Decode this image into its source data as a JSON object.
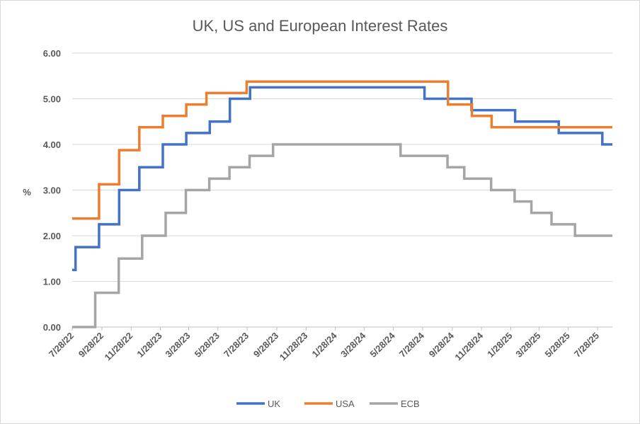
{
  "chart_data": {
    "type": "line",
    "title": "UK, US and European Interest Rates",
    "ylabel": "%",
    "xlabel": "",
    "ylim": [
      0,
      6
    ],
    "y_ticks": [
      "0.00",
      "1.00",
      "2.00",
      "3.00",
      "4.00",
      "5.00",
      "6.00"
    ],
    "xlim": [
      "2022-07-28",
      "2025-08-28"
    ],
    "x_ticks": [
      {
        "date": "2022-07-28",
        "label": "7/28/22"
      },
      {
        "date": "2022-09-28",
        "label": "9/28/22"
      },
      {
        "date": "2022-11-28",
        "label": "11/28/22"
      },
      {
        "date": "2023-01-28",
        "label": "1/28/23"
      },
      {
        "date": "2023-03-28",
        "label": "3/28/23"
      },
      {
        "date": "2023-05-28",
        "label": "5/28/23"
      },
      {
        "date": "2023-07-28",
        "label": "7/28/23"
      },
      {
        "date": "2023-09-28",
        "label": "9/28/23"
      },
      {
        "date": "2023-11-28",
        "label": "11/28/23"
      },
      {
        "date": "2024-01-28",
        "label": "1/28/24"
      },
      {
        "date": "2024-03-28",
        "label": "3/28/24"
      },
      {
        "date": "2024-05-28",
        "label": "5/28/24"
      },
      {
        "date": "2024-07-28",
        "label": "7/28/24"
      },
      {
        "date": "2024-09-28",
        "label": "9/28/24"
      },
      {
        "date": "2024-11-28",
        "label": "11/28/24"
      },
      {
        "date": "2025-01-28",
        "label": "1/28/25"
      },
      {
        "date": "2025-03-28",
        "label": "3/28/25"
      },
      {
        "date": "2025-05-28",
        "label": "5/28/25"
      },
      {
        "date": "2025-07-28",
        "label": "7/28/25"
      }
    ],
    "grid": true,
    "legend_position": "bottom",
    "series": [
      {
        "name": "UK",
        "color": "#4472c4",
        "points": [
          [
            "2022-07-28",
            1.25
          ],
          [
            "2022-08-04",
            1.75
          ],
          [
            "2022-09-22",
            2.25
          ],
          [
            "2022-11-03",
            3.0
          ],
          [
            "2022-12-15",
            3.5
          ],
          [
            "2023-02-02",
            4.0
          ],
          [
            "2023-03-23",
            4.25
          ],
          [
            "2023-05-11",
            4.5
          ],
          [
            "2023-06-22",
            5.0
          ],
          [
            "2023-08-03",
            5.25
          ],
          [
            "2024-08-01",
            5.0
          ],
          [
            "2024-11-07",
            4.75
          ],
          [
            "2025-02-06",
            4.5
          ],
          [
            "2025-05-08",
            4.25
          ],
          [
            "2025-08-07",
            4.0
          ],
          [
            "2025-08-28",
            4.0
          ]
        ]
      },
      {
        "name": "USA",
        "color": "#ed7d31",
        "points": [
          [
            "2022-07-28",
            2.375
          ],
          [
            "2022-09-22",
            3.125
          ],
          [
            "2022-11-03",
            3.875
          ],
          [
            "2022-12-15",
            4.375
          ],
          [
            "2023-02-02",
            4.625
          ],
          [
            "2023-03-23",
            4.875
          ],
          [
            "2023-05-04",
            5.125
          ],
          [
            "2023-07-27",
            5.375
          ],
          [
            "2024-09-19",
            4.875
          ],
          [
            "2024-11-08",
            4.625
          ],
          [
            "2024-12-19",
            4.375
          ],
          [
            "2025-08-28",
            4.375
          ]
        ]
      },
      {
        "name": "ECB",
        "color": "#a5a5a5",
        "points": [
          [
            "2022-07-28",
            0.0
          ],
          [
            "2022-09-14",
            0.75
          ],
          [
            "2022-11-02",
            1.5
          ],
          [
            "2022-12-21",
            2.0
          ],
          [
            "2023-02-08",
            2.5
          ],
          [
            "2023-03-22",
            3.0
          ],
          [
            "2023-05-10",
            3.25
          ],
          [
            "2023-06-21",
            3.5
          ],
          [
            "2023-08-02",
            3.75
          ],
          [
            "2023-09-20",
            4.0
          ],
          [
            "2024-06-12",
            3.75
          ],
          [
            "2024-09-18",
            3.5
          ],
          [
            "2024-10-23",
            3.25
          ],
          [
            "2024-12-18",
            3.0
          ],
          [
            "2025-02-05",
            2.75
          ],
          [
            "2025-03-12",
            2.5
          ],
          [
            "2025-04-23",
            2.25
          ],
          [
            "2025-06-11",
            2.0
          ],
          [
            "2025-08-28",
            2.0
          ]
        ]
      }
    ]
  }
}
